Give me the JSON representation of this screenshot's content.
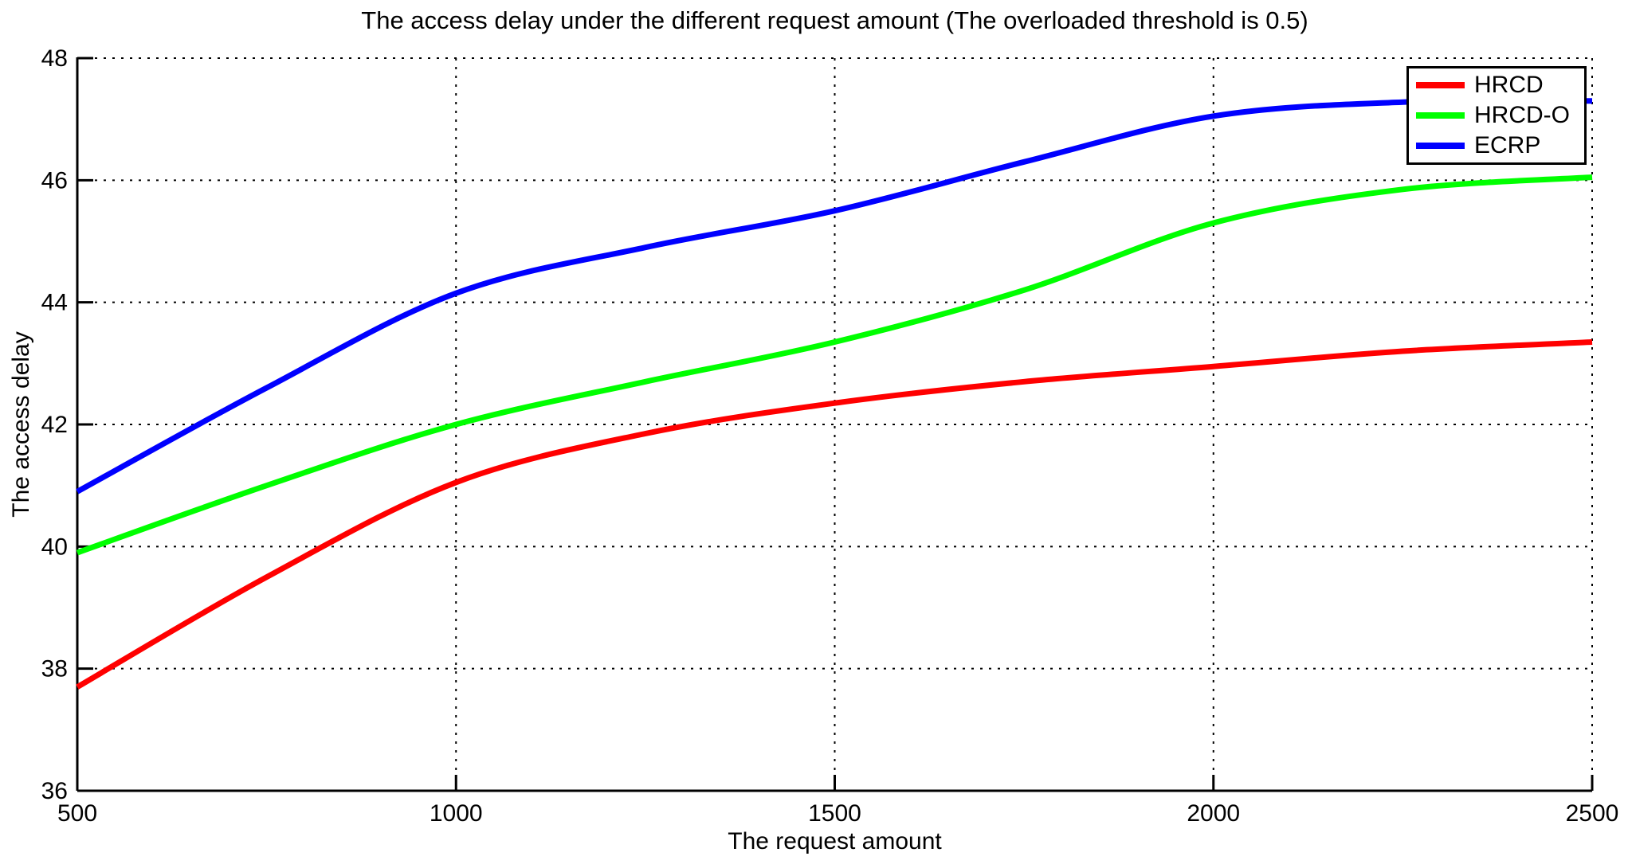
{
  "chart_data": {
    "type": "line",
    "title": "The access delay under the different request amount (The overloaded threshold is 0.5)",
    "xlabel": "The request amount",
    "ylabel": "The access delay",
    "xlim": [
      500,
      2500
    ],
    "ylim": [
      36,
      48
    ],
    "xticks": [
      500,
      1000,
      1500,
      2000,
      2500
    ],
    "yticks": [
      36,
      38,
      40,
      42,
      44,
      46,
      48
    ],
    "grid": "dotted",
    "legend_position": "top-right",
    "background_color": "#ffffff",
    "axis_color": "#000000",
    "x": [
      500,
      750,
      1000,
      1250,
      1500,
      1750,
      2000,
      2250,
      2500
    ],
    "series": [
      {
        "name": "HRCD",
        "color": "#ff0000",
        "values": [
          37.7,
          39.5,
          41.05,
          41.85,
          42.35,
          42.7,
          42.95,
          43.2,
          43.35
        ]
      },
      {
        "name": "HRCD-O",
        "color": "#00ff00",
        "values": [
          39.9,
          41.0,
          42.0,
          42.7,
          43.35,
          44.2,
          45.3,
          45.85,
          46.05
        ]
      },
      {
        "name": "ECRP",
        "color": "#0000ff",
        "values": [
          40.9,
          42.6,
          44.15,
          44.9,
          45.5,
          46.3,
          47.05,
          47.28,
          47.3
        ]
      }
    ]
  }
}
